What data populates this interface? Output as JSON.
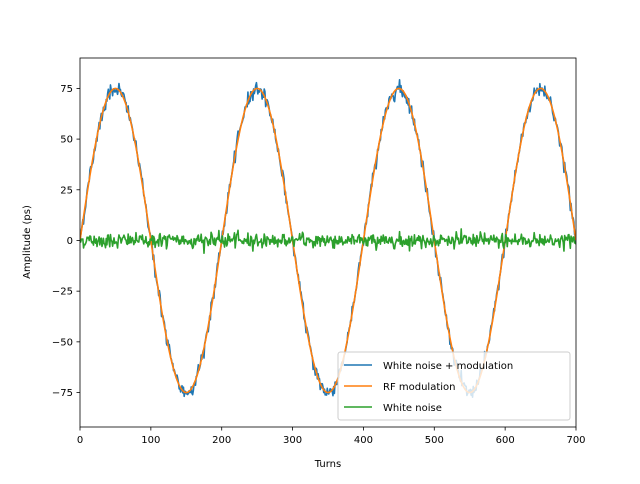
{
  "chart_data": {
    "type": "line",
    "title": "",
    "xlabel": "Turns",
    "ylabel": "Amplitude (ps)",
    "xlim": [
      0,
      700
    ],
    "ylim": [
      -92,
      90
    ],
    "x_ticks": [
      0,
      100,
      200,
      300,
      400,
      500,
      600,
      700
    ],
    "y_ticks": [
      -75,
      -50,
      -25,
      0,
      25,
      50,
      75
    ],
    "x_tick_labels": [
      "0",
      "100",
      "200",
      "300",
      "400",
      "500",
      "600",
      "700"
    ],
    "y_tick_labels": [
      "−75",
      "−50",
      "−25",
      "0",
      "25",
      "50",
      "75"
    ],
    "grid": false,
    "legend_position": "lower-right",
    "series_def": {
      "modulation_amplitude": 75,
      "modulation_period_turns": 200,
      "noise_amplitude_approx": 3,
      "x_start": 0,
      "x_end": 700,
      "x_step": 1
    },
    "series": [
      {
        "name": "White noise + modulation",
        "color": "#1f77b4"
      },
      {
        "name": "RF modulation",
        "color": "#ff7f0e"
      },
      {
        "name": "White noise",
        "color": "#2ca02c"
      }
    ]
  }
}
